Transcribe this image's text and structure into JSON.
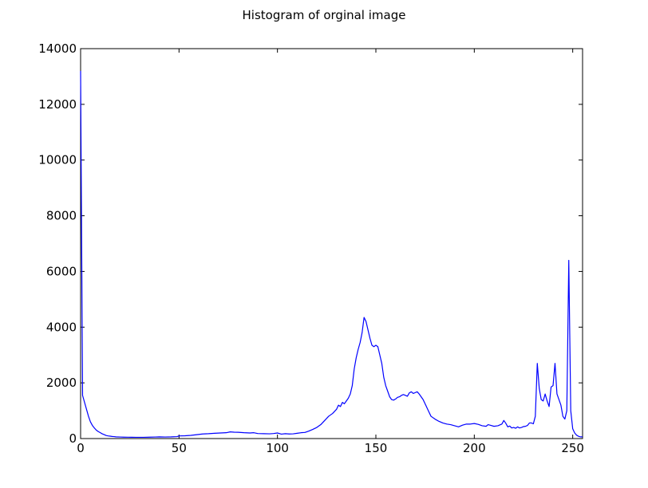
{
  "chart_data": {
    "type": "line",
    "title": "Histogram of orginal image",
    "xlabel": "",
    "ylabel": "",
    "xlim": [
      0,
      255
    ],
    "ylim": [
      0,
      14000
    ],
    "x_ticks": [
      0,
      50,
      100,
      150,
      200,
      250
    ],
    "y_ticks": [
      0,
      2000,
      4000,
      6000,
      8000,
      10000,
      12000,
      14000
    ],
    "grid": false,
    "legend": "none",
    "line_color": "#0000ff",
    "series": [
      {
        "points": [
          [
            0,
            13200
          ],
          [
            1,
            1550
          ],
          [
            2,
            1300
          ],
          [
            3,
            1050
          ],
          [
            4,
            800
          ],
          [
            5,
            600
          ],
          [
            6,
            470
          ],
          [
            7,
            380
          ],
          [
            8,
            300
          ],
          [
            9,
            250
          ],
          [
            10,
            210
          ],
          [
            11,
            170
          ],
          [
            12,
            140
          ],
          [
            13,
            110
          ],
          [
            14,
            95
          ],
          [
            15,
            85
          ],
          [
            16,
            75
          ],
          [
            17,
            70
          ],
          [
            18,
            60
          ],
          [
            20,
            55
          ],
          [
            22,
            50
          ],
          [
            24,
            48
          ],
          [
            26,
            46
          ],
          [
            28,
            45
          ],
          [
            30,
            44
          ],
          [
            32,
            45
          ],
          [
            35,
            50
          ],
          [
            38,
            55
          ],
          [
            40,
            60
          ],
          [
            43,
            55
          ],
          [
            46,
            60
          ],
          [
            49,
            70
          ],
          [
            50,
            95
          ],
          [
            53,
            100
          ],
          [
            56,
            115
          ],
          [
            59,
            140
          ],
          [
            62,
            165
          ],
          [
            65,
            175
          ],
          [
            68,
            190
          ],
          [
            71,
            200
          ],
          [
            74,
            210
          ],
          [
            76,
            240
          ],
          [
            78,
            230
          ],
          [
            80,
            225
          ],
          [
            83,
            210
          ],
          [
            86,
            200
          ],
          [
            88,
            210
          ],
          [
            90,
            180
          ],
          [
            93,
            175
          ],
          [
            96,
            170
          ],
          [
            98,
            180
          ],
          [
            100,
            200
          ],
          [
            102,
            160
          ],
          [
            104,
            175
          ],
          [
            106,
            165
          ],
          [
            108,
            170
          ],
          [
            110,
            190
          ],
          [
            112,
            210
          ],
          [
            114,
            220
          ],
          [
            116,
            270
          ],
          [
            118,
            330
          ],
          [
            120,
            400
          ],
          [
            122,
            500
          ],
          [
            124,
            650
          ],
          [
            126,
            800
          ],
          [
            128,
            900
          ],
          [
            130,
            1050
          ],
          [
            131,
            1200
          ],
          [
            132,
            1150
          ],
          [
            133,
            1300
          ],
          [
            134,
            1250
          ],
          [
            135,
            1350
          ],
          [
            136,
            1450
          ],
          [
            137,
            1600
          ],
          [
            138,
            1900
          ],
          [
            139,
            2500
          ],
          [
            140,
            2900
          ],
          [
            141,
            3200
          ],
          [
            142,
            3450
          ],
          [
            143,
            3800
          ],
          [
            144,
            4350
          ],
          [
            145,
            4200
          ],
          [
            146,
            3900
          ],
          [
            147,
            3600
          ],
          [
            148,
            3350
          ],
          [
            149,
            3300
          ],
          [
            150,
            3350
          ],
          [
            151,
            3300
          ],
          [
            152,
            3000
          ],
          [
            153,
            2700
          ],
          [
            154,
            2200
          ],
          [
            155,
            1900
          ],
          [
            156,
            1700
          ],
          [
            157,
            1500
          ],
          [
            158,
            1400
          ],
          [
            159,
            1380
          ],
          [
            160,
            1420
          ],
          [
            161,
            1480
          ],
          [
            162,
            1500
          ],
          [
            163,
            1550
          ],
          [
            164,
            1580
          ],
          [
            165,
            1550
          ],
          [
            166,
            1520
          ],
          [
            167,
            1640
          ],
          [
            168,
            1680
          ],
          [
            169,
            1620
          ],
          [
            170,
            1650
          ],
          [
            171,
            1680
          ],
          [
            172,
            1600
          ],
          [
            173,
            1500
          ],
          [
            174,
            1400
          ],
          [
            175,
            1250
          ],
          [
            176,
            1100
          ],
          [
            177,
            950
          ],
          [
            178,
            800
          ],
          [
            180,
            700
          ],
          [
            182,
            620
          ],
          [
            184,
            560
          ],
          [
            186,
            520
          ],
          [
            188,
            500
          ],
          [
            190,
            460
          ],
          [
            192,
            420
          ],
          [
            194,
            480
          ],
          [
            196,
            520
          ],
          [
            198,
            520
          ],
          [
            200,
            540
          ],
          [
            202,
            510
          ],
          [
            204,
            460
          ],
          [
            206,
            440
          ],
          [
            207,
            500
          ],
          [
            208,
            480
          ],
          [
            210,
            440
          ],
          [
            212,
            460
          ],
          [
            214,
            520
          ],
          [
            215,
            650
          ],
          [
            216,
            550
          ],
          [
            217,
            420
          ],
          [
            218,
            450
          ],
          [
            219,
            380
          ],
          [
            220,
            400
          ],
          [
            221,
            370
          ],
          [
            222,
            420
          ],
          [
            223,
            380
          ],
          [
            224,
            400
          ],
          [
            225,
            430
          ],
          [
            226,
            440
          ],
          [
            227,
            470
          ],
          [
            228,
            560
          ],
          [
            229,
            560
          ],
          [
            230,
            530
          ],
          [
            231,
            800
          ],
          [
            232,
            2700
          ],
          [
            233,
            1800
          ],
          [
            234,
            1400
          ],
          [
            235,
            1350
          ],
          [
            236,
            1600
          ],
          [
            237,
            1350
          ],
          [
            238,
            1150
          ],
          [
            239,
            1850
          ],
          [
            240,
            1900
          ],
          [
            241,
            2700
          ],
          [
            242,
            1600
          ],
          [
            243,
            1400
          ],
          [
            244,
            1200
          ],
          [
            245,
            800
          ],
          [
            246,
            700
          ],
          [
            247,
            1000
          ],
          [
            248,
            6400
          ],
          [
            249,
            1000
          ],
          [
            250,
            350
          ],
          [
            251,
            200
          ],
          [
            252,
            120
          ],
          [
            253,
            80
          ],
          [
            254,
            60
          ],
          [
            255,
            60
          ]
        ]
      }
    ]
  }
}
